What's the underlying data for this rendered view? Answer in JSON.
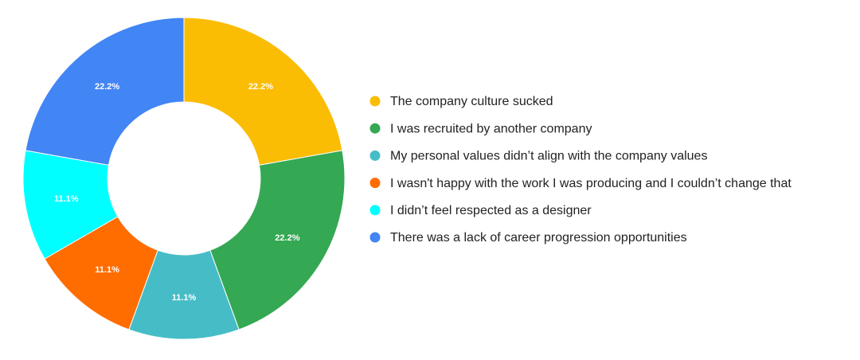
{
  "chart_data": {
    "type": "donut",
    "categories": [
      "The company culture sucked",
      "I was recruited by another company",
      "My personal values didn’t align with the company values",
      "I wasn't happy with the work I was producing and I couldn’t change that",
      "I didn’t feel respected as a designer",
      "There was a lack of career progression opportunities"
    ],
    "values": [
      22.2,
      22.2,
      11.1,
      11.1,
      11.1,
      22.2
    ],
    "value_labels": [
      "22.2%",
      "22.2%",
      "11.1%",
      "11.1%",
      "11.1%",
      "22.2%"
    ],
    "colors": [
      "#fbbc04",
      "#34a853",
      "#46bdc6",
      "#ff6d01",
      "#00ffff",
      "#4285f4"
    ]
  }
}
